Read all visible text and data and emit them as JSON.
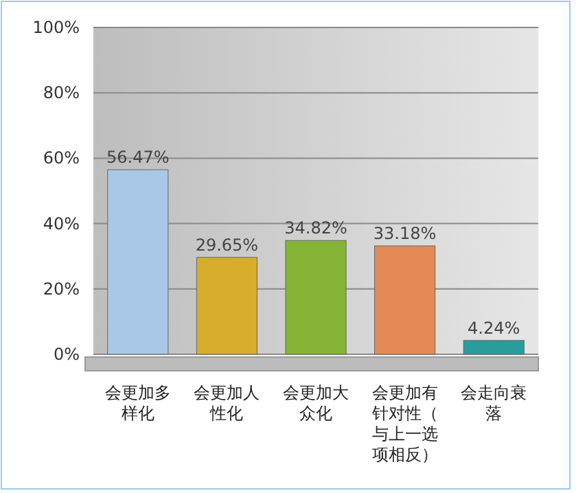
{
  "chart_data": {
    "type": "bar",
    "categories": [
      "会更加多样化",
      "会更加人性化",
      "会更加大众化",
      "会更加有针对性（与上一选项相反）",
      "会走向衰落"
    ],
    "values": [
      56.47,
      29.65,
      34.82,
      33.18,
      4.24
    ],
    "colors": [
      "#a9c8e6",
      "#d8ad2c",
      "#86b436",
      "#e38a56",
      "#2a9c9c"
    ],
    "value_labels": [
      "56.47%",
      "29.65%",
      "34.82%",
      "33.18%",
      "4.24%"
    ],
    "ylim": [
      0,
      100
    ],
    "yticks": [
      {
        "value": 0,
        "label": "0%"
      },
      {
        "value": 20,
        "label": "20%"
      },
      {
        "value": 40,
        "label": "40%"
      },
      {
        "value": 60,
        "label": "60%"
      },
      {
        "value": 80,
        "label": "80%"
      },
      {
        "value": 100,
        "label": "100%"
      }
    ],
    "grid": "y"
  }
}
